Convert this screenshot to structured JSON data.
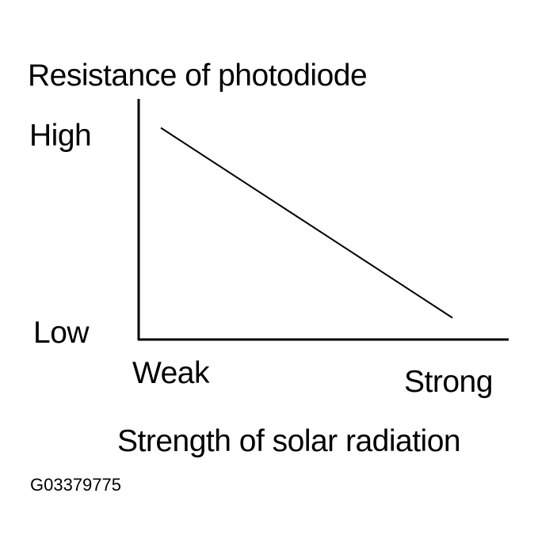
{
  "chart_data": {
    "type": "line",
    "title": "Resistance of photodiode",
    "xlabel": "Strength of solar radiation",
    "ylabel": "",
    "x_tick_labels": [
      "Weak",
      "Strong"
    ],
    "y_tick_labels": [
      "High",
      "Low"
    ],
    "xlim": [
      0,
      1
    ],
    "ylim": [
      0,
      1
    ],
    "grid": false,
    "legend": "none",
    "series": [
      {
        "x": [
          0.06,
          0.85
        ],
        "y": [
          0.88,
          0.09
        ]
      }
    ],
    "line_color": "#000000"
  },
  "figure_id": "G03379775"
}
